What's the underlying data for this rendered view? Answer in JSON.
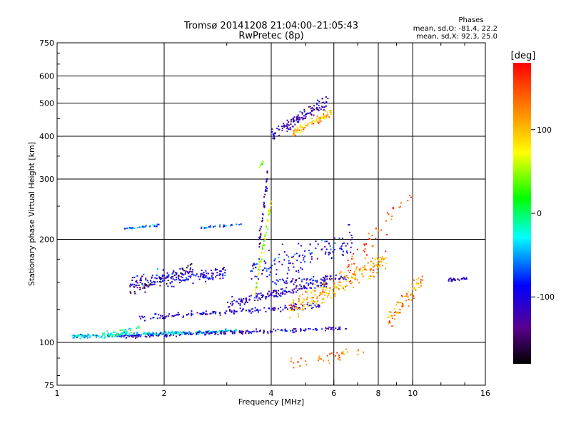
{
  "chart_data": {
    "type": "scatter",
    "title": "Tromsø 20141208 21:04:00–21:05:43",
    "subtitle": "RwPretec (8p)",
    "xlabel": "Frequency [MHz]",
    "ylabel": "Stationary phase Virtual Height [km]",
    "x_scale": "log",
    "y_scale": "log",
    "xlim": [
      1,
      16
    ],
    "ylim": [
      75,
      750
    ],
    "x_ticks": [
      1,
      2,
      4,
      6,
      8,
      10,
      16
    ],
    "y_ticks": [
      75,
      100,
      200,
      300,
      400,
      500,
      600,
      750
    ],
    "grid": true,
    "phase_box": {
      "header": "Phases",
      "line_o": "mean, sd,O: -81.4, 22.2",
      "line_x": "mean, sd,X:  92.3, 25.0"
    },
    "colorbar": {
      "label": "[deg]",
      "range": [
        -180,
        180
      ],
      "ticks": [
        100,
        0,
        -100
      ],
      "colors": [
        "#000000",
        "#5a0090",
        "#0000ff",
        "#00ffff",
        "#00ff00",
        "#ffff00",
        "#ff8000",
        "#ff0000"
      ]
    },
    "clusters": [
      {
        "f0": 1.1,
        "f1": 3.2,
        "h0": 104,
        "h1": 108,
        "spread": 0.012,
        "n": 260,
        "phase": -40
      },
      {
        "f0": 1.3,
        "f1": 1.7,
        "h0": 104,
        "h1": 110,
        "spread": 0.02,
        "n": 40,
        "phase": -10
      },
      {
        "f0": 1.5,
        "f1": 6.6,
        "h0": 104,
        "h1": 110,
        "spread": 0.012,
        "n": 200,
        "phase": -110
      },
      {
        "f0": 1.7,
        "f1": 5.5,
        "h0": 118,
        "h1": 128,
        "spread": 0.018,
        "n": 160,
        "phase": -110
      },
      {
        "f0": 1.6,
        "f1": 3.0,
        "h0": 150,
        "h1": 160,
        "spread": 0.05,
        "n": 200,
        "phase": -100
      },
      {
        "f0": 1.6,
        "f1": 2.4,
        "h0": 140,
        "h1": 165,
        "spread": 0.035,
        "n": 50,
        "phase": -150
      },
      {
        "f0": 3.0,
        "f1": 5.8,
        "h0": 130,
        "h1": 150,
        "spread": 0.03,
        "n": 160,
        "phase": -110
      },
      {
        "f0": 4.0,
        "f1": 6.5,
        "h0": 150,
        "h1": 155,
        "spread": 0.02,
        "n": 70,
        "phase": -110
      },
      {
        "f0": 3.5,
        "f1": 6.8,
        "h0": 160,
        "h1": 200,
        "spread": 0.09,
        "n": 140,
        "phase": -100
      },
      {
        "f0": 3.6,
        "f1": 4.0,
        "h0": 140,
        "h1": 260,
        "spread": 0.05,
        "n": 60,
        "phase": 60
      },
      {
        "f0": 4.5,
        "f1": 8.5,
        "h0": 125,
        "h1": 175,
        "spread": 0.07,
        "n": 220,
        "phase": 110
      },
      {
        "f0": 8.5,
        "f1": 10.7,
        "h0": 115,
        "h1": 155,
        "spread": 0.07,
        "n": 80,
        "phase": 120
      },
      {
        "f0": 4.5,
        "f1": 7.5,
        "h0": 86,
        "h1": 96,
        "spread": 0.04,
        "n": 40,
        "phase": 130
      },
      {
        "f0": 1.55,
        "f1": 1.95,
        "h0": 215,
        "h1": 220,
        "spread": 0.01,
        "n": 30,
        "phase": -60
      },
      {
        "f0": 2.5,
        "f1": 3.3,
        "h0": 215,
        "h1": 222,
        "spread": 0.01,
        "n": 25,
        "phase": -70
      },
      {
        "f0": 3.7,
        "f1": 3.9,
        "h0": 195,
        "h1": 300,
        "spread": 0.05,
        "n": 40,
        "phase": -120
      },
      {
        "f0": 4.0,
        "f1": 5.8,
        "h0": 400,
        "h1": 510,
        "spread": 0.04,
        "n": 130,
        "phase": -120
      },
      {
        "f0": 4.6,
        "f1": 5.9,
        "h0": 410,
        "h1": 470,
        "spread": 0.03,
        "n": 90,
        "phase": 100
      },
      {
        "f0": 3.7,
        "f1": 3.8,
        "h0": 325,
        "h1": 335,
        "spread": 0.01,
        "n": 10,
        "phase": 40
      },
      {
        "f0": 12.6,
        "f1": 14.2,
        "h0": 152,
        "h1": 154,
        "spread": 0.01,
        "n": 30,
        "phase": -110
      },
      {
        "f0": 6.5,
        "f1": 10.0,
        "h0": 160,
        "h1": 280,
        "spread": 0.08,
        "n": 50,
        "phase": 150
      }
    ]
  }
}
